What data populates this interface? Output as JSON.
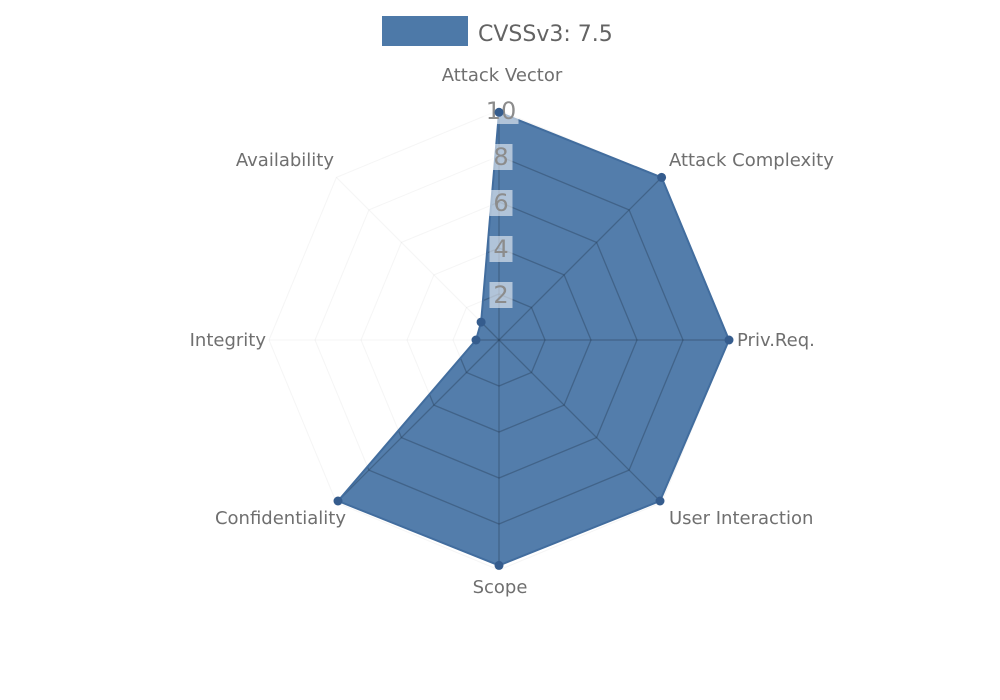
{
  "legend": {
    "label": "CVSSv3: 7.5",
    "swatch_color": "#4d79a8"
  },
  "chart_data": {
    "type": "radar",
    "categories": [
      "Attack Vector",
      "Attack Complexity",
      "Priv.Req.",
      "User Interaction",
      "Scope",
      "Confidentiality",
      "Integrity",
      "Availability"
    ],
    "values": [
      9.9,
      10,
      10,
      9.9,
      9.8,
      9.9,
      1.0,
      1.1
    ],
    "radial_ticks": [
      2,
      4,
      6,
      8,
      10
    ],
    "ylim": [
      0,
      10
    ],
    "grid": true,
    "legend_position": "top-center",
    "legend_entries": [
      {
        "label": "CVSSv3: 7.5",
        "color": "#4d79a8"
      }
    ],
    "colors": {
      "fill": "#4d79a8",
      "outline": "#426d9e",
      "marker": "#355c8d",
      "grid_inside": "#253a52",
      "grid_outside": "#999999",
      "axis_label": "#6f6f6f",
      "tick_label": "#8c8c8c",
      "legend_text": "#636363",
      "tick_box": "#ffffff"
    }
  }
}
